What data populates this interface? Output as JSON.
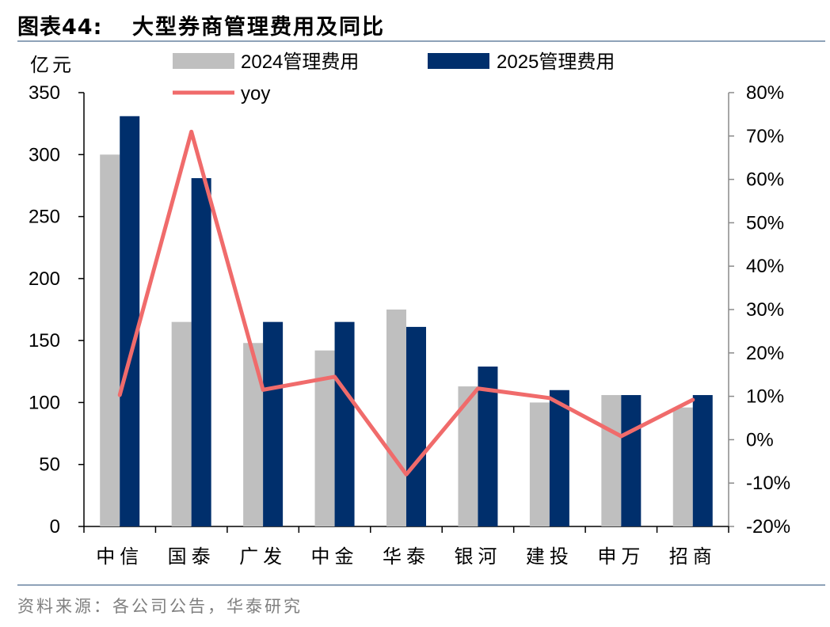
{
  "header": {
    "figure_label": "图表44:",
    "title": "大型券商管理费用及同比"
  },
  "source": "资料来源：各公司公告，华泰研究",
  "colors": {
    "series_2024": "#bfbfbf",
    "series_2025": "#002f6c",
    "yoy_line": "#f06b6b",
    "rule": "#8ea2b8"
  },
  "chart_data": {
    "type": "bar",
    "categories": [
      "中信",
      "国泰",
      "广发",
      "中金",
      "华泰",
      "银河",
      "建投",
      "申万",
      "招商"
    ],
    "series": [
      {
        "name": "2024管理费用",
        "type": "bar",
        "axis": "left",
        "values": [
          300,
          165,
          148,
          142,
          175,
          113,
          100,
          106,
          96
        ]
      },
      {
        "name": "2025管理费用",
        "type": "bar",
        "axis": "left",
        "values": [
          331,
          281,
          165,
          165,
          161,
          129,
          110,
          106,
          106
        ]
      },
      {
        "name": "yoy",
        "type": "line",
        "axis": "right",
        "values": [
          10.3,
          71.0,
          11.5,
          14.5,
          -8.0,
          11.8,
          9.6,
          0.8,
          9.2
        ]
      }
    ],
    "ylabel": "亿元",
    "ylim": [
      0,
      350
    ],
    "yticks": [
      0,
      50,
      100,
      150,
      200,
      250,
      300,
      350
    ],
    "y2lim": [
      -20,
      80
    ],
    "y2ticks": [
      "-20%",
      "-10%",
      "0%",
      "10%",
      "20%",
      "30%",
      "40%",
      "50%",
      "60%",
      "70%",
      "80%"
    ],
    "legend": "top",
    "grid": false
  }
}
